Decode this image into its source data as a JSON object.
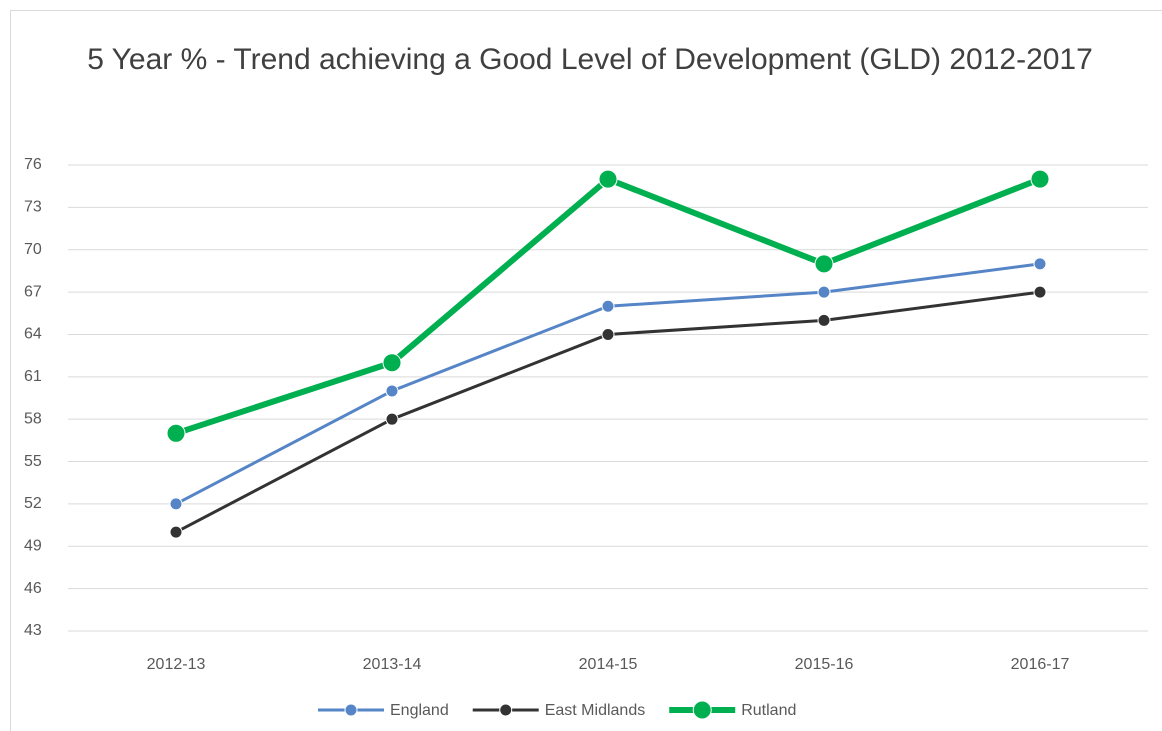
{
  "chart_data": {
    "type": "line",
    "title": "5 Year % - Trend achieving a Good Level of Development (GLD) 2012-2017",
    "categories": [
      "2012-13",
      "2013-14",
      "2014-15",
      "2015-16",
      "2016-17"
    ],
    "series": [
      {
        "name": "England",
        "color": "#5585c6",
        "values": [
          52,
          60,
          66,
          67,
          69
        ]
      },
      {
        "name": "East Midlands",
        "color": "#333333",
        "values": [
          50,
          58,
          64,
          65,
          67
        ]
      },
      {
        "name": "Rutland",
        "color": "#00b050",
        "values": [
          57,
          62,
          75,
          69,
          75
        ]
      }
    ],
    "ylim": [
      43,
      76
    ],
    "yticks": [
      43,
      46,
      49,
      52,
      55,
      58,
      61,
      64,
      67,
      70,
      73,
      76
    ],
    "grid": true,
    "legend": "bottom"
  }
}
